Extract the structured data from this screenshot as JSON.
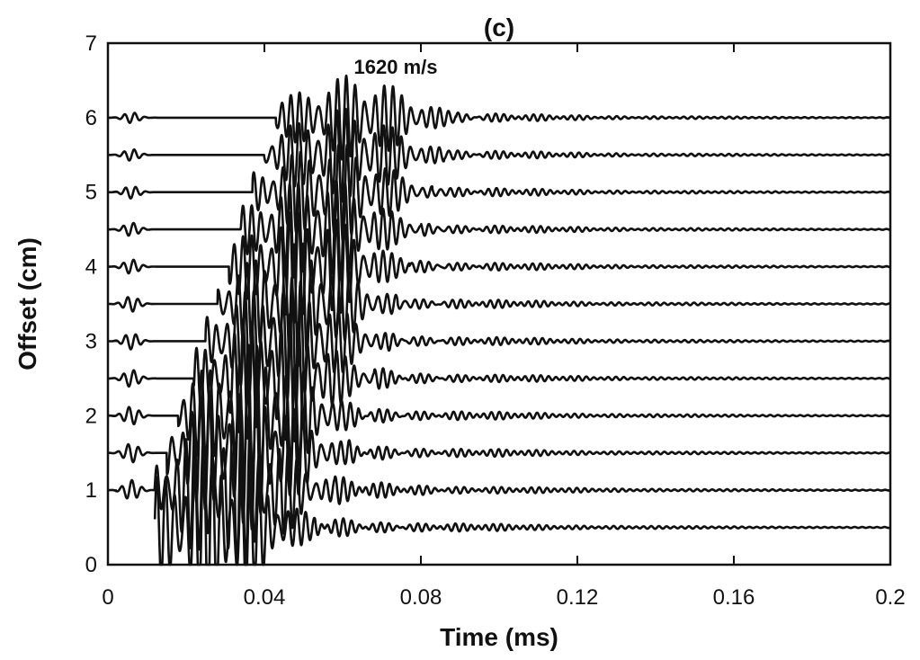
{
  "chart_data": {
    "type": "line",
    "title": "(c)",
    "xlabel": "Time  (ms)",
    "ylabel": "Offset  (cm)",
    "xlim": [
      0,
      0.2
    ],
    "ylim": [
      0,
      7
    ],
    "xticks": [
      0,
      0.04,
      0.08,
      0.12,
      0.16,
      0.2
    ],
    "xtick_labels": [
      "0",
      "0.04",
      "0.08",
      "0.12",
      "0.16",
      "0.2"
    ],
    "yticks": [
      0,
      1,
      2,
      3,
      4,
      5,
      6,
      7
    ],
    "ytick_labels": [
      "0",
      "1",
      "2",
      "3",
      "4",
      "5",
      "6",
      "7"
    ],
    "grid": false,
    "annotation": "1620  m/s",
    "line_color": "#111111",
    "traces": [
      {
        "offset": 0.5,
        "arrival_ms": 0.013
      },
      {
        "offset": 1.0,
        "arrival_ms": 0.018
      },
      {
        "offset": 1.5,
        "arrival_ms": 0.021
      },
      {
        "offset": 2.0,
        "arrival_ms": 0.024
      },
      {
        "offset": 2.5,
        "arrival_ms": 0.028
      },
      {
        "offset": 3.0,
        "arrival_ms": 0.031
      },
      {
        "offset": 3.5,
        "arrival_ms": 0.034
      },
      {
        "offset": 4.0,
        "arrival_ms": 0.037
      },
      {
        "offset": 4.5,
        "arrival_ms": 0.04
      },
      {
        "offset": 5.0,
        "arrival_ms": 0.043
      },
      {
        "offset": 5.5,
        "arrival_ms": 0.046
      },
      {
        "offset": 6.0,
        "arrival_ms": 0.049
      }
    ]
  }
}
